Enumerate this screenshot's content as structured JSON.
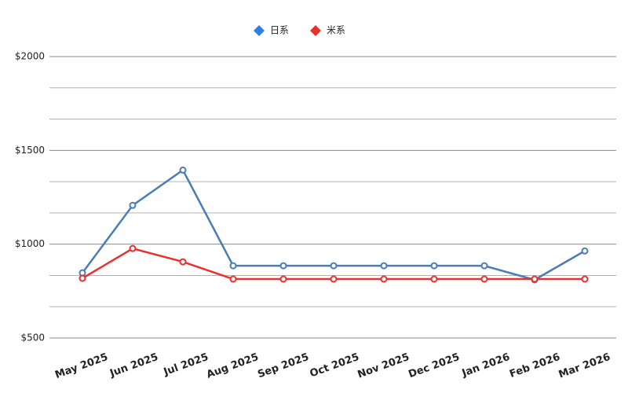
{
  "chart_data": {
    "type": "line",
    "categories": [
      "May 2025",
      "Jun 2025",
      "Jul 2025",
      "Aug 2025",
      "Sep 2025",
      "Oct 2025",
      "Nov 2025",
      "Dec 2025",
      "Jan 2026",
      "Feb 2026",
      "Mar 2026"
    ],
    "series": [
      {
        "name": "日系",
        "color": "#4a7db3",
        "legend_color": "#2f80e6",
        "values": [
          847,
          1207,
          1395,
          885,
          885,
          885,
          885,
          885,
          885,
          810,
          964
        ]
      },
      {
        "name": "米系",
        "color": "#e8302e",
        "legend_color": "#e8302e",
        "values": [
          818,
          977,
          906,
          814,
          814,
          814,
          814,
          814,
          814,
          814,
          814
        ]
      }
    ],
    "ylim": [
      500,
      2000
    ],
    "yticks": [
      {
        "value": 500,
        "label": "$500"
      },
      {
        "value": 1000,
        "label": "$1000"
      },
      {
        "value": 1500,
        "label": "$1500"
      },
      {
        "value": 2000,
        "label": "$2000"
      }
    ],
    "grid": true,
    "grid_subdivisions": 3,
    "legend": "top"
  }
}
